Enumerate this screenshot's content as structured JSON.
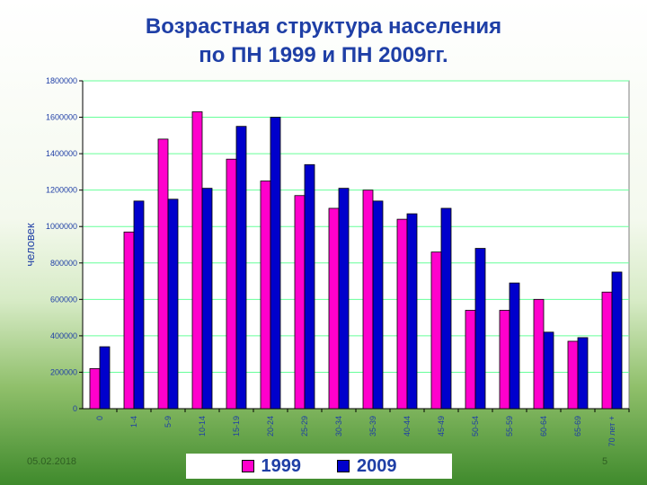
{
  "title_line1": "Возрастная структура населения",
  "title_line2": "по ПН 1999 и ПН 2009гг.",
  "footer_date": "05.02.2018",
  "page_number": "5",
  "colors": {
    "series1999": "#ff00cc",
    "series2009": "#0000cc",
    "grid": "#66ff99"
  },
  "chart_data": {
    "type": "bar",
    "title": "Возрастная структура населения по ПН 1999 и ПН 2009гг.",
    "xlabel": "",
    "ylabel": "человек",
    "ylim": [
      0,
      1800000
    ],
    "yticks": [
      "0",
      "200000",
      "400000",
      "600000",
      "800000",
      "1000000",
      "1200000",
      "1400000",
      "1600000",
      "1800000"
    ],
    "grid": true,
    "legend": "bottom",
    "categories": [
      "0",
      "1-4",
      "5-9",
      "10-14",
      "15-19",
      "20-24",
      "25-29",
      "30-34",
      "35-39",
      "40-44",
      "45-49",
      "50-54",
      "55-59",
      "60-64",
      "65-69",
      "70 лет +"
    ],
    "series": [
      {
        "name": "1999",
        "values": [
          220000,
          970000,
          1480000,
          1630000,
          1370000,
          1250000,
          1170000,
          1100000,
          1200000,
          1040000,
          860000,
          540000,
          540000,
          600000,
          370000,
          640000
        ]
      },
      {
        "name": "2009",
        "values": [
          340000,
          1140000,
          1150000,
          1210000,
          1550000,
          1600000,
          1340000,
          1210000,
          1140000,
          1070000,
          1100000,
          880000,
          690000,
          420000,
          390000,
          750000
        ]
      }
    ]
  }
}
